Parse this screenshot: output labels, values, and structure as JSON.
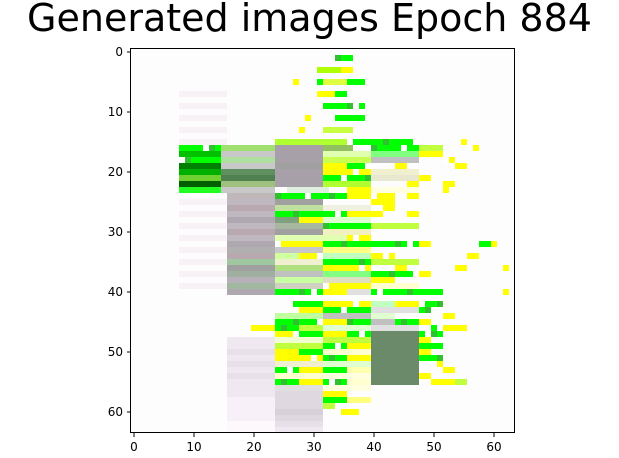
{
  "chart_data": {
    "type": "heatmap",
    "title": "Generated images Epoch 884",
    "xlabel": "",
    "ylabel": "",
    "xlim": [
      -0.5,
      63.5
    ],
    "ylim": [
      63.5,
      -0.5
    ],
    "x_ticks": [
      0,
      10,
      20,
      30,
      40,
      50,
      60
    ],
    "y_ticks": [
      0,
      10,
      20,
      30,
      40,
      50,
      60
    ],
    "grid": false,
    "image_size": [
      64,
      64
    ],
    "pixel_rows": {
      "1": [
        [
          34,
          37,
          "#00ff00"
        ]
      ],
      "3": [
        [
          31,
          36,
          "#b0ff00"
        ],
        [
          35,
          37,
          "#ffff00"
        ]
      ],
      "5": [
        [
          27,
          28,
          "#ffff00"
        ],
        [
          31,
          32,
          "#00ff00"
        ],
        [
          32,
          36,
          "#e0ff40"
        ],
        [
          36,
          39,
          "#00ff00"
        ]
      ],
      "7": [
        [
          31,
          34,
          "#ffff00"
        ],
        [
          34,
          36,
          "#00ff00"
        ]
      ],
      "9": [
        [
          32,
          39,
          "#00ff00"
        ]
      ],
      "11": [
        [
          29,
          30,
          "#ffff00"
        ],
        [
          33,
          39,
          "#00ff00"
        ]
      ],
      "13": [
        [
          28,
          30,
          "#ffff00"
        ],
        [
          32,
          37,
          "#c8ff40"
        ]
      ],
      "15": [
        [
          24,
          36,
          "#b0ff30"
        ],
        [
          36,
          48,
          "#00ff00"
        ],
        [
          55,
          56,
          "#ffff00"
        ]
      ],
      "16": [
        [
          8,
          15,
          "#00ff00"
        ],
        [
          15,
          24,
          "#a0e070"
        ],
        [
          24,
          32,
          "#a8a0a8"
        ],
        [
          32,
          37,
          "#90c060"
        ],
        [
          40,
          48,
          "#00ff00"
        ],
        [
          48,
          52,
          "#c0ff40"
        ],
        [
          56,
          58,
          "#ffff00"
        ]
      ],
      "17": [
        [
          8,
          15,
          "#00c000"
        ],
        [
          15,
          24,
          "#c8c8c8"
        ],
        [
          24,
          32,
          "#a8a0a8"
        ],
        [
          32,
          40,
          "#e0ffb0"
        ],
        [
          40,
          48,
          "#80ff80"
        ],
        [
          48,
          52,
          "#ffff00"
        ]
      ],
      "18": [
        [
          8,
          15,
          "#00ff00"
        ],
        [
          15,
          24,
          "#b0e0a0"
        ],
        [
          24,
          32,
          "#a8a0a8"
        ],
        [
          32,
          40,
          "#c8ff50"
        ],
        [
          40,
          48,
          "#c0c0c0"
        ],
        [
          52,
          54,
          "#ffff00"
        ]
      ],
      "19": [
        [
          8,
          15,
          "#008000"
        ],
        [
          15,
          24,
          "#c8c8c8"
        ],
        [
          24,
          32,
          "#a0a0a0"
        ],
        [
          32,
          36,
          "#ffff00"
        ],
        [
          36,
          40,
          "#00ff00"
        ],
        [
          44,
          46,
          "#ffff00"
        ],
        [
          54,
          56,
          "#ffff00"
        ]
      ],
      "20": [
        [
          8,
          15,
          "#00b000"
        ],
        [
          15,
          24,
          "#609060"
        ],
        [
          24,
          32,
          "#a8a0a8"
        ],
        [
          32,
          40,
          "#ffff00"
        ],
        [
          40,
          48,
          "#f0f0d0"
        ]
      ],
      "21": [
        [
          8,
          15,
          "#70d030"
        ],
        [
          15,
          24,
          "#508050"
        ],
        [
          24,
          32,
          "#a8a0a8"
        ],
        [
          32,
          40,
          "#00ff00"
        ],
        [
          40,
          48,
          "#e8e8d0"
        ],
        [
          48,
          50,
          "#ffff00"
        ]
      ],
      "22": [
        [
          8,
          15,
          "#006000"
        ],
        [
          15,
          24,
          "#a0c080"
        ],
        [
          24,
          32,
          "#a8a0a8"
        ],
        [
          32,
          40,
          "#b0ff30"
        ],
        [
          46,
          48,
          "#ffff00"
        ],
        [
          52,
          54,
          "#ffff00"
        ]
      ],
      "23": [
        [
          8,
          15,
          "#20ff20"
        ],
        [
          15,
          24,
          "#c8c8c8"
        ],
        [
          26,
          33,
          "#e0f0e0"
        ],
        [
          36,
          40,
          "#ffff00"
        ],
        [
          40,
          48,
          "#ffffe0"
        ],
        [
          52,
          54,
          "#ffff00"
        ]
      ],
      "24": [
        [
          16,
          24,
          "#c0b8b8"
        ],
        [
          24,
          36,
          "#00ff00"
        ],
        [
          36,
          44,
          "#ffff00"
        ],
        [
          46,
          48,
          "#ffff00"
        ]
      ],
      "25": [
        [
          16,
          24,
          "#c0b8c0"
        ],
        [
          24,
          32,
          "#a0a0a0"
        ],
        [
          40,
          44,
          "#ffff00"
        ]
      ],
      "26": [
        [
          16,
          24,
          "#b8a8b0"
        ],
        [
          24,
          32,
          "#c0e0a0"
        ],
        [
          32,
          40,
          "#f0f0e0"
        ],
        [
          42,
          44,
          "#ffff00"
        ]
      ],
      "27": [
        [
          16,
          24,
          "#c0b8c0"
        ],
        [
          24,
          36,
          "#00ff00"
        ],
        [
          36,
          42,
          "#ffff00"
        ],
        [
          46,
          48,
          "#ffff00"
        ]
      ],
      "28": [
        [
          16,
          24,
          "#b0a8b0"
        ],
        [
          24,
          28,
          "#80a080"
        ],
        [
          28,
          32,
          "#ffff00"
        ],
        [
          32,
          40,
          "#e0ffd0"
        ]
      ],
      "29": [
        [
          16,
          24,
          "#c0b8c0"
        ],
        [
          24,
          32,
          "#a8b8a0"
        ],
        [
          32,
          40,
          "#00ff00"
        ],
        [
          40,
          48,
          "#c0ff40"
        ]
      ],
      "30": [
        [
          16,
          24,
          "#b8a8b0"
        ],
        [
          24,
          32,
          "#a0a0a0"
        ],
        [
          32,
          40,
          "#f0f0c0"
        ]
      ],
      "31": [
        [
          16,
          24,
          "#c0b8c0"
        ],
        [
          24,
          36,
          "#e0ffb0"
        ],
        [
          36,
          40,
          "#ffff00"
        ]
      ],
      "32": [
        [
          16,
          24,
          "#b0a8b0"
        ],
        [
          24,
          32,
          "#ffff00"
        ],
        [
          32,
          40,
          "#00ff00"
        ],
        [
          40,
          48,
          "#00ff00"
        ],
        [
          48,
          50,
          "#ffff00"
        ],
        [
          58,
          60,
          "#00ff00"
        ],
        [
          60,
          61,
          "#ffff00"
        ]
      ],
      "33": [
        [
          16,
          24,
          "#b0b0b0"
        ],
        [
          24,
          32,
          "#c8c8c8"
        ],
        [
          32,
          40,
          "#ffff80"
        ]
      ],
      "34": [
        [
          16,
          24,
          "#b8a8b0"
        ],
        [
          24,
          28,
          "#d0ffa0"
        ],
        [
          28,
          32,
          "#ffff00"
        ],
        [
          32,
          40,
          "#c0ffc0"
        ],
        [
          40,
          44,
          "#ffff00"
        ],
        [
          56,
          58,
          "#ffff00"
        ]
      ],
      "35": [
        [
          16,
          24,
          "#a0c8a0"
        ],
        [
          24,
          32,
          "#f0f0d0"
        ],
        [
          32,
          40,
          "#00ff00"
        ],
        [
          40,
          48,
          "#c0ff40"
        ]
      ],
      "36": [
        [
          16,
          24,
          "#a0a0a0"
        ],
        [
          24,
          32,
          "#b0e080"
        ],
        [
          32,
          40,
          "#ffff00"
        ],
        [
          44,
          46,
          "#ffff00"
        ],
        [
          54,
          56,
          "#ffff00"
        ],
        [
          62,
          63,
          "#ffff00"
        ]
      ],
      "37": [
        [
          16,
          24,
          "#a0b0a0"
        ],
        [
          24,
          32,
          "#c0c0c0"
        ],
        [
          32,
          40,
          "#80ff80"
        ],
        [
          40,
          48,
          "#00ff00"
        ],
        [
          48,
          50,
          "#ffff00"
        ]
      ],
      "38": [
        [
          16,
          24,
          "#b8b0b8"
        ],
        [
          24,
          32,
          "#c8ffa0"
        ],
        [
          32,
          40,
          "#e0e0c0"
        ],
        [
          40,
          44,
          "#ffff00"
        ]
      ],
      "39": [
        [
          16,
          24,
          "#a0b8a0"
        ],
        [
          24,
          32,
          "#d0d0c0"
        ],
        [
          32,
          40,
          "#ffff00"
        ],
        [
          40,
          48,
          "#ffffd0"
        ]
      ],
      "40": [
        [
          16,
          24,
          "#b0a8b0"
        ],
        [
          24,
          32,
          "#00ff00"
        ],
        [
          32,
          36,
          "#ffff00"
        ],
        [
          36,
          40,
          "#e0e0e0"
        ],
        [
          40,
          48,
          "#00ff00"
        ],
        [
          48,
          52,
          "#00ff00"
        ],
        [
          62,
          63,
          "#ffff00"
        ]
      ],
      "42": [
        [
          26,
          32,
          "#00ff00"
        ],
        [
          32,
          40,
          "#ffff00"
        ],
        [
          40,
          44,
          "#c0ffc0"
        ],
        [
          44,
          48,
          "#ffff00"
        ],
        [
          48,
          52,
          "#00ff00"
        ]
      ],
      "43": [
        [
          28,
          32,
          "#ffff00"
        ],
        [
          32,
          40,
          "#00ff00"
        ],
        [
          40,
          48,
          "#e0e0e0"
        ],
        [
          48,
          50,
          "#00ff00"
        ]
      ],
      "44": [
        [
          24,
          32,
          "#c0ffa0"
        ],
        [
          32,
          40,
          "#c0c0c0"
        ],
        [
          40,
          44,
          "#e0ffd0"
        ],
        [
          52,
          54,
          "#ffff00"
        ]
      ],
      "45": [
        [
          24,
          32,
          "#00ff00"
        ],
        [
          32,
          36,
          "#ffff00"
        ],
        [
          36,
          40,
          "#00ff00"
        ],
        [
          40,
          44,
          "#c0c0c0"
        ],
        [
          44,
          48,
          "#00ff00"
        ],
        [
          48,
          50,
          "#ffff00"
        ]
      ],
      "46": [
        [
          20,
          24,
          "#ffff00"
        ],
        [
          24,
          28,
          "#00ff00"
        ],
        [
          28,
          32,
          "#c0ff40"
        ],
        [
          32,
          40,
          "#e0ffd0"
        ],
        [
          40,
          48,
          "#e0e0e0"
        ],
        [
          50,
          52,
          "#00ff00"
        ],
        [
          52,
          56,
          "#ffff00"
        ]
      ],
      "47": [
        [
          24,
          28,
          "#ffff00"
        ],
        [
          28,
          32,
          "#00ff00"
        ],
        [
          32,
          36,
          "#ffff00"
        ],
        [
          36,
          40,
          "#00ff00"
        ],
        [
          40,
          48,
          "#6a8a6a"
        ],
        [
          48,
          52,
          "#00ff00"
        ]
      ],
      "48": [
        [
          16,
          24,
          "#f0e8f0"
        ],
        [
          24,
          32,
          "#f0ffd0"
        ],
        [
          32,
          40,
          "#c0ff40"
        ],
        [
          40,
          48,
          "#6a8a6a"
        ],
        [
          48,
          50,
          "#ffff00"
        ]
      ],
      "49": [
        [
          16,
          24,
          "#f0e8f0"
        ],
        [
          24,
          32,
          "#c0ff40"
        ],
        [
          32,
          36,
          "#00ff00"
        ],
        [
          36,
          40,
          "#ffff00"
        ],
        [
          40,
          48,
          "#6a8a6a"
        ],
        [
          48,
          50,
          "#00ff00"
        ],
        [
          50,
          52,
          "#00ff00"
        ]
      ],
      "50": [
        [
          16,
          24,
          "#e8e0e8"
        ],
        [
          24,
          28,
          "#ffff00"
        ],
        [
          28,
          32,
          "#00ff00"
        ],
        [
          32,
          40,
          "#ffffd0"
        ],
        [
          40,
          48,
          "#6a8a6a"
        ],
        [
          48,
          50,
          "#ffff00"
        ]
      ],
      "51": [
        [
          16,
          24,
          "#f0e8f0"
        ],
        [
          24,
          32,
          "#ffff00"
        ],
        [
          32,
          36,
          "#00ff00"
        ],
        [
          36,
          40,
          "#ffff00"
        ],
        [
          40,
          48,
          "#6a8a6a"
        ],
        [
          48,
          52,
          "#00ff00"
        ]
      ],
      "52": [
        [
          16,
          24,
          "#e8e0e8"
        ],
        [
          24,
          32,
          "#f0f0d0"
        ],
        [
          32,
          40,
          "#e0ffd0"
        ],
        [
          40,
          48,
          "#6a8a6a"
        ],
        [
          50,
          52,
          "#ffff00"
        ]
      ],
      "53": [
        [
          16,
          24,
          "#f0e8f0"
        ],
        [
          24,
          28,
          "#00ff00"
        ],
        [
          28,
          32,
          "#ffff00"
        ],
        [
          32,
          36,
          "#00ff00"
        ],
        [
          36,
          40,
          "#ffffb0"
        ],
        [
          40,
          48,
          "#6a8a6a"
        ],
        [
          52,
          54,
          "#ffff00"
        ]
      ],
      "54": [
        [
          16,
          24,
          "#e8e0e8"
        ],
        [
          24,
          32,
          "#ffffd0"
        ],
        [
          32,
          40,
          "#ffffe0"
        ],
        [
          40,
          48,
          "#6a8a6a"
        ],
        [
          48,
          50,
          "#ffff00"
        ]
      ],
      "55": [
        [
          16,
          24,
          "#f0e8f0"
        ],
        [
          24,
          28,
          "#00ff00"
        ],
        [
          28,
          32,
          "#ffff00"
        ],
        [
          32,
          36,
          "#00ff00"
        ],
        [
          36,
          40,
          "#ffffd0"
        ],
        [
          40,
          48,
          "#6a8a6a"
        ],
        [
          50,
          54,
          "#ffff00"
        ],
        [
          54,
          56,
          "#c0ff40"
        ]
      ],
      "56": [
        [
          16,
          24,
          "#f0e8f0"
        ],
        [
          24,
          32,
          "#e0e0e0"
        ],
        [
          32,
          40,
          "#ffffe0"
        ]
      ],
      "57": [
        [
          16,
          24,
          "#f0e8f0"
        ],
        [
          24,
          32,
          "#e0d8e0"
        ],
        [
          32,
          36,
          "#ffff00"
        ]
      ],
      "58": [
        [
          16,
          24,
          "#f8f0f8"
        ],
        [
          24,
          32,
          "#e0d8e0"
        ],
        [
          32,
          36,
          "#00ff00"
        ],
        [
          36,
          40,
          "#ffff80"
        ]
      ],
      "59": [
        [
          16,
          24,
          "#f8f0f8"
        ],
        [
          24,
          32,
          "#e0d8e0"
        ],
        [
          32,
          34,
          "#c0ff40"
        ]
      ],
      "60": [
        [
          16,
          24,
          "#f8f0f8"
        ],
        [
          24,
          32,
          "#d8d0d8"
        ],
        [
          34,
          38,
          "#ffff00"
        ]
      ],
      "61": [
        [
          16,
          24,
          "#f8f0f8"
        ],
        [
          24,
          32,
          "#e0d8e0"
        ]
      ],
      "62": [
        [
          16,
          24,
          "#fcf8fc"
        ],
        [
          24,
          32,
          "#e8e0e8"
        ]
      ],
      "63": [
        [
          16,
          24,
          "#fcf8fc"
        ],
        [
          24,
          32,
          "#f0e8f0"
        ]
      ]
    }
  }
}
